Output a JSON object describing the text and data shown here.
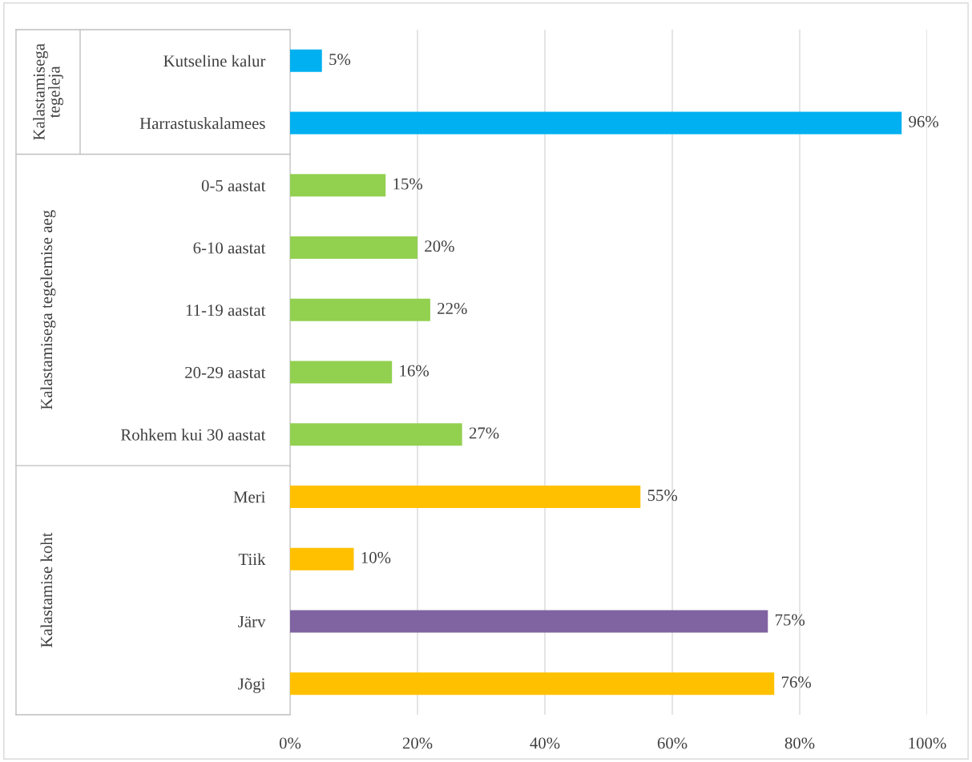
{
  "chart_data": {
    "type": "bar",
    "orientation": "horizontal",
    "categories": [
      "Kutseline kalur",
      "Harrastuskalamees",
      "0-5 aastat",
      "6-10 aastat",
      "11-19 aastat",
      "20-29 aastat",
      "Rohkem kui 30 aastat",
      "Meri",
      "Tiik",
      "Järv",
      "Jõgi"
    ],
    "values": [
      5,
      96,
      15,
      20,
      22,
      16,
      27,
      55,
      10,
      75,
      76
    ],
    "value_labels": [
      "5%",
      "96%",
      "15%",
      "20%",
      "22%",
      "16%",
      "27%",
      "55%",
      "10%",
      "75%",
      "76%"
    ],
    "colors": [
      "#00b0f0",
      "#00b0f0",
      "#92d050",
      "#92d050",
      "#92d050",
      "#92d050",
      "#92d050",
      "#ffc000",
      "#ffc000",
      "#8064a2",
      "#ffc000"
    ],
    "xlim": [
      0,
      100
    ],
    "xticks": [
      {
        "value": 0,
        "label": "0%"
      },
      {
        "value": 20,
        "label": "20%"
      },
      {
        "value": 40,
        "label": "40%"
      },
      {
        "value": 60,
        "label": "60%"
      },
      {
        "value": 80,
        "label": "80%"
      },
      {
        "value": 100,
        "label": "100%"
      }
    ],
    "grid": "x",
    "annotations": [
      "Kalastamisega\ntegeleja",
      "Kalastamisega tegelemise aeg",
      "Kalastamise koht"
    ]
  }
}
